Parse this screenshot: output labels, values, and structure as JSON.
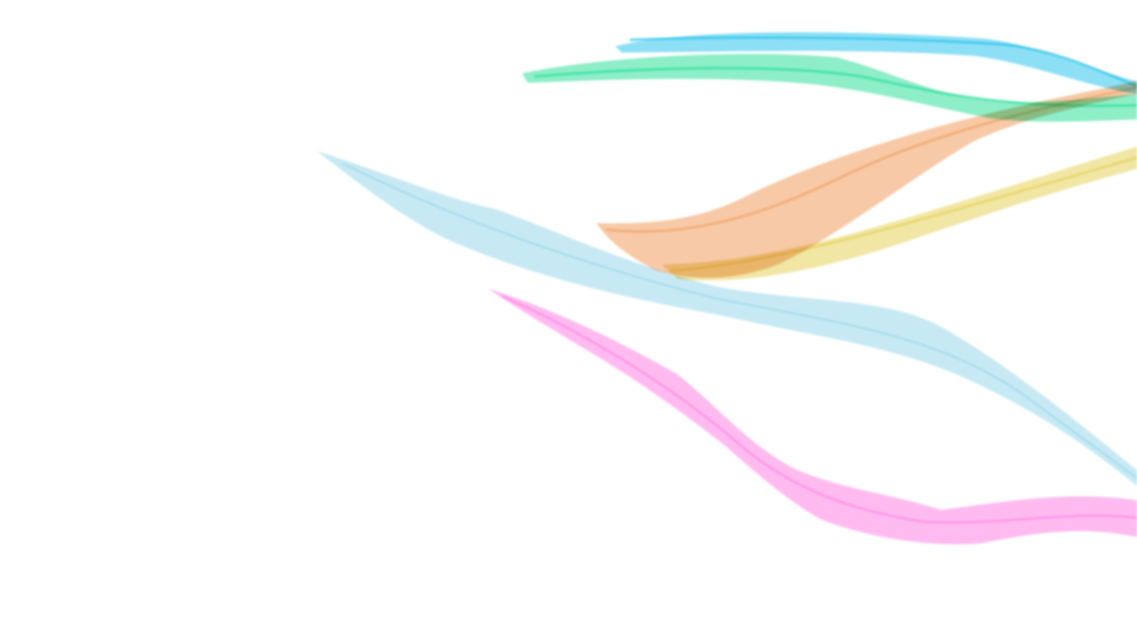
{
  "canvas": {
    "background": "#ffffff"
  },
  "ribbons": [
    {
      "id": "blue",
      "color": "#2ec4ec",
      "opacity": 0.55
    },
    {
      "id": "green",
      "color": "#2fe09a",
      "opacity": 0.55
    },
    {
      "id": "orange",
      "color": "#f2a56a",
      "opacity": 0.6
    },
    {
      "id": "yellow",
      "color": "#e6d25a",
      "opacity": 0.55
    },
    {
      "id": "lightblue",
      "color": "#8fd3ea",
      "opacity": 0.5
    },
    {
      "id": "pink",
      "color": "#ff8ee6",
      "opacity": 0.6
    }
  ]
}
